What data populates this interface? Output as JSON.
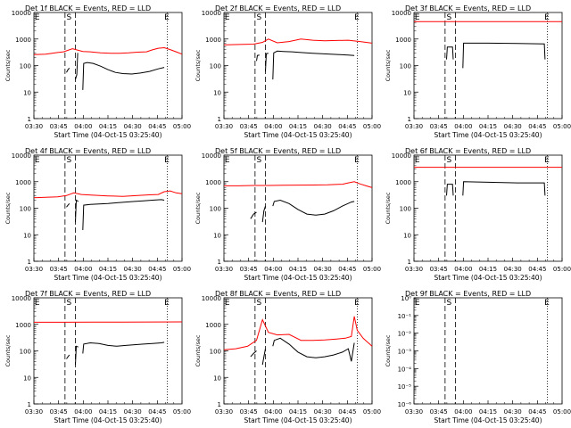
{
  "colors": {
    "events": "#000000",
    "lld": "#ff0000",
    "axis": "#000000",
    "background": "#ffffff"
  },
  "common": {
    "ylabel": "Counts/sec",
    "xlabel": "Start Time (04-Oct-15 03:25:40)",
    "x_ticks": [
      "03:30",
      "03:45",
      "04:00",
      "04:15",
      "04:30",
      "04:45",
      "05:00"
    ],
    "y_ticks": [
      "1",
      "10",
      "100",
      "1000",
      "10000"
    ],
    "y_ticks_low": [
      "10⁻⁶",
      "10⁻⁵",
      "10⁻⁴",
      "10⁻³",
      "10⁻²",
      "10⁻¹",
      "10⁰"
    ],
    "markers": [
      "E",
      "S",
      "E"
    ]
  },
  "chart_data": [
    {
      "type": "line",
      "title": "Det 1f BLACK = Events, RED = LLD",
      "ylim": [
        1,
        10000
      ],
      "yscale": "log",
      "xlim": [
        0,
        100
      ],
      "series": [
        {
          "color": "#ff0000",
          "x": [
            0,
            8,
            16,
            20,
            26,
            33,
            38,
            45,
            52,
            58,
            64,
            70,
            76,
            80,
            84,
            88,
            92,
            96,
            100
          ],
          "y": [
            260,
            270,
            310,
            330,
            430,
            340,
            330,
            300,
            290,
            290,
            300,
            320,
            330,
            390,
            450,
            470,
            400,
            330,
            270
          ]
        },
        {
          "color": "#000000",
          "segments": [
            {
              "x": [
                22,
                23,
                24
              ],
              "y": [
                55,
                70,
                80
              ]
            },
            {
              "x": [
                28,
                29,
                29.6
              ],
              "y": [
                30,
                45,
                300
              ]
            },
            {
              "x": [
                33,
                33.6,
                36,
                40,
                45,
                50,
                55,
                60,
                66,
                72,
                78,
                84,
                88
              ],
              "y": [
                12,
                120,
                130,
                120,
                95,
                70,
                55,
                50,
                48,
                52,
                60,
                75,
                85
              ]
            }
          ]
        }
      ]
    },
    {
      "type": "line",
      "title": "Det 2f BLACK = Events, RED = LLD",
      "ylim": [
        1,
        10000
      ],
      "yscale": "log",
      "xlim": [
        0,
        100
      ],
      "series": [
        {
          "color": "#ff0000",
          "x": [
            0,
            10,
            20,
            26,
            30,
            36,
            44,
            52,
            60,
            68,
            76,
            84,
            92,
            100
          ],
          "y": [
            600,
            620,
            640,
            750,
            1000,
            720,
            800,
            1000,
            900,
            850,
            880,
            900,
            800,
            700
          ]
        },
        {
          "color": "#000000",
          "segments": [
            {
              "x": [
                22,
                22.6,
                24
              ],
              "y": [
                150,
                240,
                250
              ]
            },
            {
              "x": [
                28,
                28.6,
                30
              ],
              "y": [
                60,
                280,
                290
              ]
            },
            {
              "x": [
                33,
                33.6,
                36,
                40,
                46,
                52,
                60,
                66,
                72,
                78,
                84,
                88
              ],
              "y": [
                30,
                300,
                350,
                340,
                330,
                310,
                290,
                280,
                270,
                260,
                250,
                240
              ]
            }
          ]
        }
      ]
    },
    {
      "type": "line",
      "title": "Det 3f BLACK = Events, RED = LLD",
      "ylim": [
        1,
        10000
      ],
      "yscale": "log",
      "xlim": [
        0,
        100
      ],
      "series": [
        {
          "color": "#ff0000",
          "x": [
            0,
            100
          ],
          "y": [
            4500,
            4500
          ]
        },
        {
          "color": "#000000",
          "segments": [
            {
              "x": [
                22,
                22.5,
                26,
                26.5
              ],
              "y": [
                170,
                500,
                500,
                170
              ]
            },
            {
              "x": [
                33,
                33.5,
                50,
                70,
                88,
                88.5
              ],
              "y": [
                80,
                700,
                700,
                680,
                650,
                170
              ]
            }
          ]
        }
      ]
    },
    {
      "type": "line",
      "title": "Det 4f BLACK = Events, RED = LLD",
      "ylim": [
        1,
        10000
      ],
      "yscale": "log",
      "xlim": [
        0,
        100
      ],
      "series": [
        {
          "color": "#ff0000",
          "x": [
            0,
            8,
            16,
            22,
            27,
            32,
            40,
            50,
            60,
            70,
            78,
            84,
            88,
            92,
            96,
            100
          ],
          "y": [
            250,
            260,
            270,
            300,
            380,
            330,
            310,
            290,
            280,
            300,
            320,
            330,
            420,
            450,
            380,
            350
          ]
        },
        {
          "color": "#000000",
          "segments": [
            {
              "x": [
                22,
                23,
                24
              ],
              "y": [
                110,
                130,
                150
              ]
            },
            {
              "x": [
                28,
                28.6,
                30
              ],
              "y": [
                30,
                200,
                180
              ]
            },
            {
              "x": [
                33,
                33.6,
                38,
                44,
                50,
                56,
                62,
                68,
                74,
                80,
                86,
                88
              ],
              "y": [
                15,
                130,
                140,
                145,
                150,
                160,
                170,
                180,
                190,
                200,
                210,
                200
              ]
            }
          ]
        }
      ]
    },
    {
      "type": "line",
      "title": "Det 5f BLACK = Events, RED = LLD",
      "ylim": [
        1,
        10000
      ],
      "yscale": "log",
      "xlim": [
        0,
        100
      ],
      "series": [
        {
          "color": "#ff0000",
          "x": [
            0,
            10,
            20,
            30,
            40,
            50,
            60,
            70,
            80,
            84,
            88,
            92,
            96,
            100
          ],
          "y": [
            700,
            700,
            720,
            720,
            730,
            740,
            750,
            760,
            800,
            900,
            1000,
            820,
            700,
            600
          ]
        },
        {
          "color": "#000000",
          "segments": [
            {
              "x": [
                18,
                20,
                22
              ],
              "y": [
                40,
                60,
                70
              ]
            },
            {
              "x": [
                26,
                27,
                28
              ],
              "y": [
                30,
                80,
                120
              ]
            },
            {
              "x": [
                33,
                34,
                38,
                44,
                50,
                56,
                62,
                68,
                74,
                80,
                86,
                88
              ],
              "y": [
                120,
                180,
                200,
                150,
                90,
                60,
                55,
                60,
                80,
                120,
                170,
                180
              ]
            }
          ]
        }
      ]
    },
    {
      "type": "line",
      "title": "Det 6f BLACK = Events, RED = LLD",
      "ylim": [
        1,
        10000
      ],
      "yscale": "log",
      "xlim": [
        0,
        100
      ],
      "series": [
        {
          "color": "#ff0000",
          "x": [
            0,
            100
          ],
          "y": [
            3500,
            3500
          ]
        },
        {
          "color": "#000000",
          "segments": [
            {
              "x": [
                22,
                22.5,
                26,
                26.5
              ],
              "y": [
                300,
                800,
                800,
                300
              ]
            },
            {
              "x": [
                33,
                33.5,
                50,
                70,
                88,
                88.5
              ],
              "y": [
                300,
                1000,
                950,
                900,
                900,
                300
              ]
            }
          ]
        }
      ]
    },
    {
      "type": "line",
      "title": "Det 7f BLACK = Events, RED = LLD",
      "ylim": [
        1,
        10000
      ],
      "yscale": "log",
      "xlim": [
        0,
        100
      ],
      "series": [
        {
          "color": "#ff0000",
          "x": [
            0,
            20,
            40,
            60,
            80,
            100
          ],
          "y": [
            1200,
            1200,
            1210,
            1220,
            1230,
            1240
          ]
        },
        {
          "color": "#000000",
          "segments": [
            {
              "x": [
                22,
                23,
                24
              ],
              "y": [
                50,
                60,
                70
              ]
            },
            {
              "x": [
                28,
                28.6,
                30
              ],
              "y": [
                30,
                150,
                140
              ]
            },
            {
              "x": [
                33,
                33.6,
                38,
                44,
                50,
                56,
                62,
                68,
                74,
                80,
                86,
                88
              ],
              "y": [
                80,
                180,
                200,
                190,
                160,
                150,
                160,
                170,
                180,
                190,
                200,
                210
              ]
            }
          ]
        }
      ]
    },
    {
      "type": "line",
      "title": "Det 8f BLACK = Events, RED = LLD",
      "ylim": [
        1,
        10000
      ],
      "yscale": "log",
      "xlim": [
        0,
        100
      ],
      "series": [
        {
          "color": "#ff0000",
          "x": [
            0,
            8,
            16,
            22,
            26,
            30,
            36,
            44,
            52,
            60,
            68,
            76,
            82,
            86,
            88,
            90,
            94,
            100
          ],
          "y": [
            110,
            120,
            150,
            250,
            1500,
            500,
            400,
            420,
            250,
            250,
            260,
            280,
            300,
            350,
            2000,
            600,
            300,
            150
          ]
        },
        {
          "color": "#000000",
          "segments": [
            {
              "x": [
                18,
                20,
                22
              ],
              "y": [
                60,
                80,
                100
              ]
            },
            {
              "x": [
                26,
                27,
                28
              ],
              "y": [
                30,
                60,
                120
              ]
            },
            {
              "x": [
                33,
                34,
                38,
                44,
                50,
                56,
                62,
                68,
                74,
                80,
                84,
                86,
                88
              ],
              "y": [
                150,
                250,
                300,
                180,
                90,
                60,
                55,
                60,
                70,
                90,
                120,
                40,
                200
              ]
            }
          ]
        }
      ]
    },
    {
      "type": "line",
      "title": "Det 9f BLACK = Events, RED = LLD",
      "ylim": [
        1e-06,
        1
      ],
      "yscale": "log",
      "xlim": [
        0,
        100
      ],
      "series": []
    }
  ]
}
